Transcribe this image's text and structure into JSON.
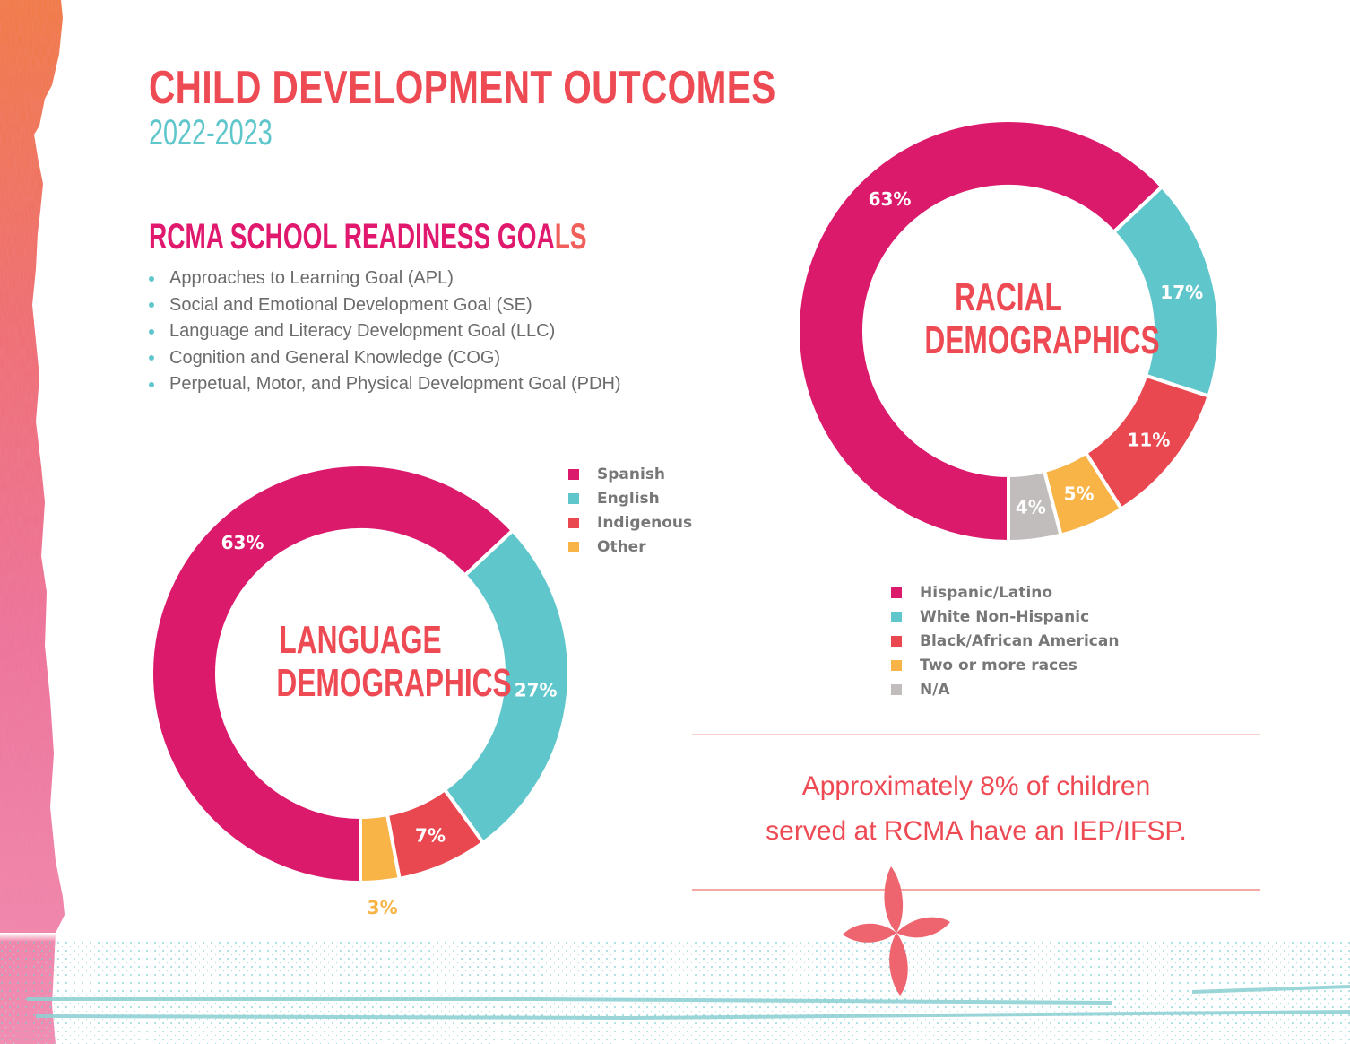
{
  "header": {
    "title": "CHILD DEVELOPMENT OUTCOMES",
    "year": "2022-2023"
  },
  "goals": {
    "title_main": "RCMA SCHOOL READINESS GOA",
    "title_tail": "LS",
    "items": [
      "Approaches to Learning Goal (APL)",
      "Social and Emotional Development Goal (SE)",
      "Language and Literacy Development Goal (LLC)",
      "Cognition and General Knowledge (COG)",
      "Perpetual, Motor, and Physical Development Goal (PDH)"
    ]
  },
  "colors": {
    "magenta": "#dc1a6c",
    "teal": "#5fc6cb",
    "red": "#ea4851",
    "orange": "#f8b447",
    "gray": "#c2bdbd",
    "title_red": "#ee4a54",
    "legend_text": "#777777"
  },
  "iep_note": {
    "line1": "Approximately 8% of children",
    "line2": "served at RCMA have an IEP/IFSP."
  },
  "chart_data": [
    {
      "type": "pie",
      "title_line1": "LANGUAGE",
      "title_line2": "DEMOGRAPHICS",
      "donut": true,
      "start": "bottom",
      "direction": "clockwise",
      "legend_position": "top-right",
      "categories": [
        "Spanish",
        "English",
        "Indigenous",
        "Other"
      ],
      "values": [
        63,
        27,
        7,
        3
      ],
      "labels": [
        "63%",
        "27%",
        "7%",
        "3%"
      ],
      "colors": [
        "#dc1a6c",
        "#5fc6cb",
        "#ea4851",
        "#f8b447"
      ],
      "label_outside": [
        false,
        false,
        false,
        true
      ]
    },
    {
      "type": "pie",
      "title_line1": "RACIAL",
      "title_line2": "DEMOGRAPHICS",
      "donut": true,
      "start": "bottom",
      "direction": "clockwise",
      "legend_position": "bottom",
      "categories": [
        "Hispanic/Latino",
        "White Non-Hispanic",
        "Black/African American",
        "Two or more races",
        "N/A"
      ],
      "values": [
        63,
        17,
        11,
        5,
        4
      ],
      "labels": [
        "63%",
        "17%",
        "11%",
        "5%",
        "4%"
      ],
      "colors": [
        "#dc1a6c",
        "#5fc6cb",
        "#ea4851",
        "#f8b447",
        "#c2bdbd"
      ],
      "label_outside": [
        false,
        false,
        false,
        false,
        false
      ]
    }
  ]
}
